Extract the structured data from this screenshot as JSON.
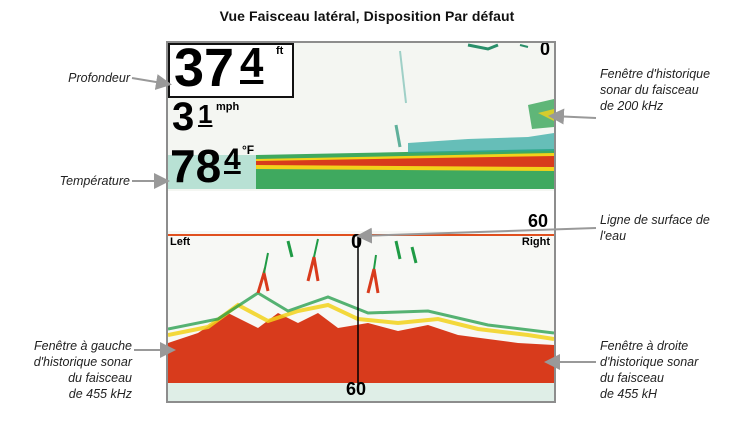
{
  "title": "Vue Faisceau latéral, Disposition Par défaut",
  "labels": {
    "depth": "Profondeur",
    "temperature": "Température",
    "history_200": [
      "Fenêtre d'historique",
      "sonar du faisceau",
      "de 200 kHz"
    ],
    "surface_line": [
      "Ligne de surface de",
      "l'eau"
    ],
    "left_455": [
      "Fenêtre à gauche",
      "d'historique sonar",
      "du faisceau",
      "de 455 kHz"
    ],
    "right_455": [
      "Fenêtre à droite",
      "d'historique sonar",
      "du faisceau",
      "de 455 kH"
    ]
  },
  "display": {
    "depth_whole": "37",
    "depth_decimal": "4",
    "depth_unit": "ft",
    "speed_whole": "3",
    "speed_decimal": "1",
    "speed_unit": "mph",
    "temp_whole": "78",
    "temp_decimal": "4",
    "temp_unit": "°F",
    "top_scale": "0",
    "side_range": "60",
    "left_tag": "Left",
    "right_tag": "Right",
    "center_zero": "0",
    "bottom_range": "60"
  },
  "colors": {
    "sonar_bottom": "#d83b1c",
    "sonar_orange": "#f08a1e",
    "sonar_yellow": "#f2d21a",
    "sonar_green": "#1f9b45",
    "sonar_teal": "#2aa6a0",
    "surface_line": "#e0501f"
  }
}
